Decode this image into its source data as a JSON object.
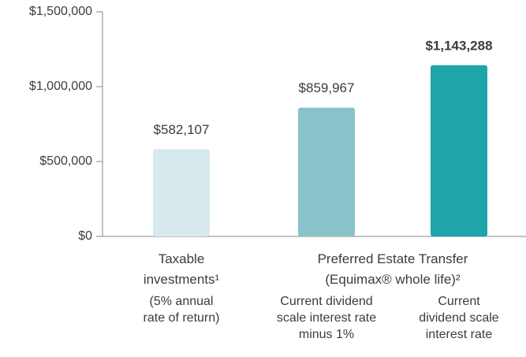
{
  "chart_data": {
    "type": "bar",
    "categories": [
      "(5% annual rate of return)",
      "Current dividend scale interest rate minus 1%",
      "Current dividend scale interest rate"
    ],
    "groups": [
      {
        "label": "Taxable investments¹",
        "members": [
          0
        ]
      },
      {
        "label": "Preferred Estate Transfer (Equimax® whole life)²",
        "members": [
          1,
          2
        ]
      }
    ],
    "values": [
      582107,
      859967,
      1143288
    ],
    "value_labels": [
      "$582,107",
      "$859,967",
      "$1,143,288"
    ],
    "colors": [
      "#d6eaee",
      "#88c3c9",
      "#1ea4a9"
    ],
    "ylim": [
      0,
      1500000
    ],
    "yticks": [
      {
        "value": 0,
        "label": "$0"
      },
      {
        "value": 500000,
        "label": "$500,000"
      },
      {
        "value": 1000000,
        "label": "$1,000,000"
      },
      {
        "value": 1500000,
        "label": "$1,500,000"
      }
    ],
    "grid": false
  }
}
